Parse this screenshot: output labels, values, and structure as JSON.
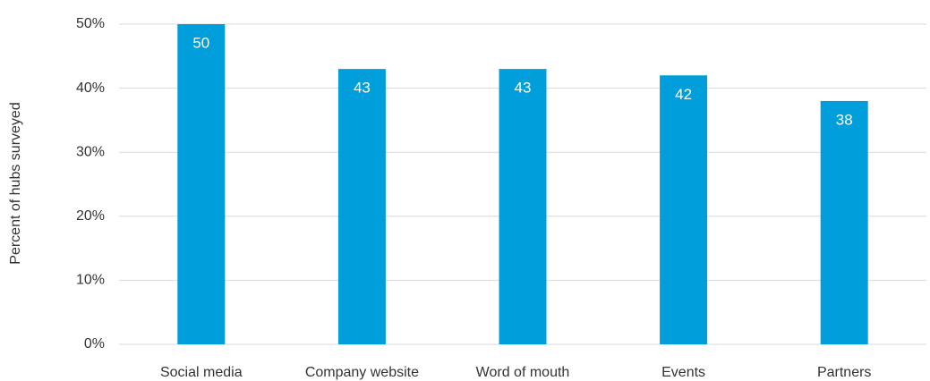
{
  "chart_data": {
    "type": "bar",
    "y_label": "Percent of hubs surveyed",
    "categories": [
      "Social media",
      "Company website",
      "Word of mouth",
      "Events",
      "Partners"
    ],
    "values": [
      50,
      43,
      43,
      42,
      38
    ],
    "color": "#009fdb",
    "ylim": [
      0,
      50
    ],
    "yticks": [
      {
        "value": 0,
        "label": "0%"
      },
      {
        "value": 10,
        "label": "10%"
      },
      {
        "value": 20,
        "label": "20%"
      },
      {
        "value": 30,
        "label": "30%"
      },
      {
        "value": 40,
        "label": "40%"
      },
      {
        "value": 50,
        "label": "50%"
      }
    ],
    "grid": true
  }
}
